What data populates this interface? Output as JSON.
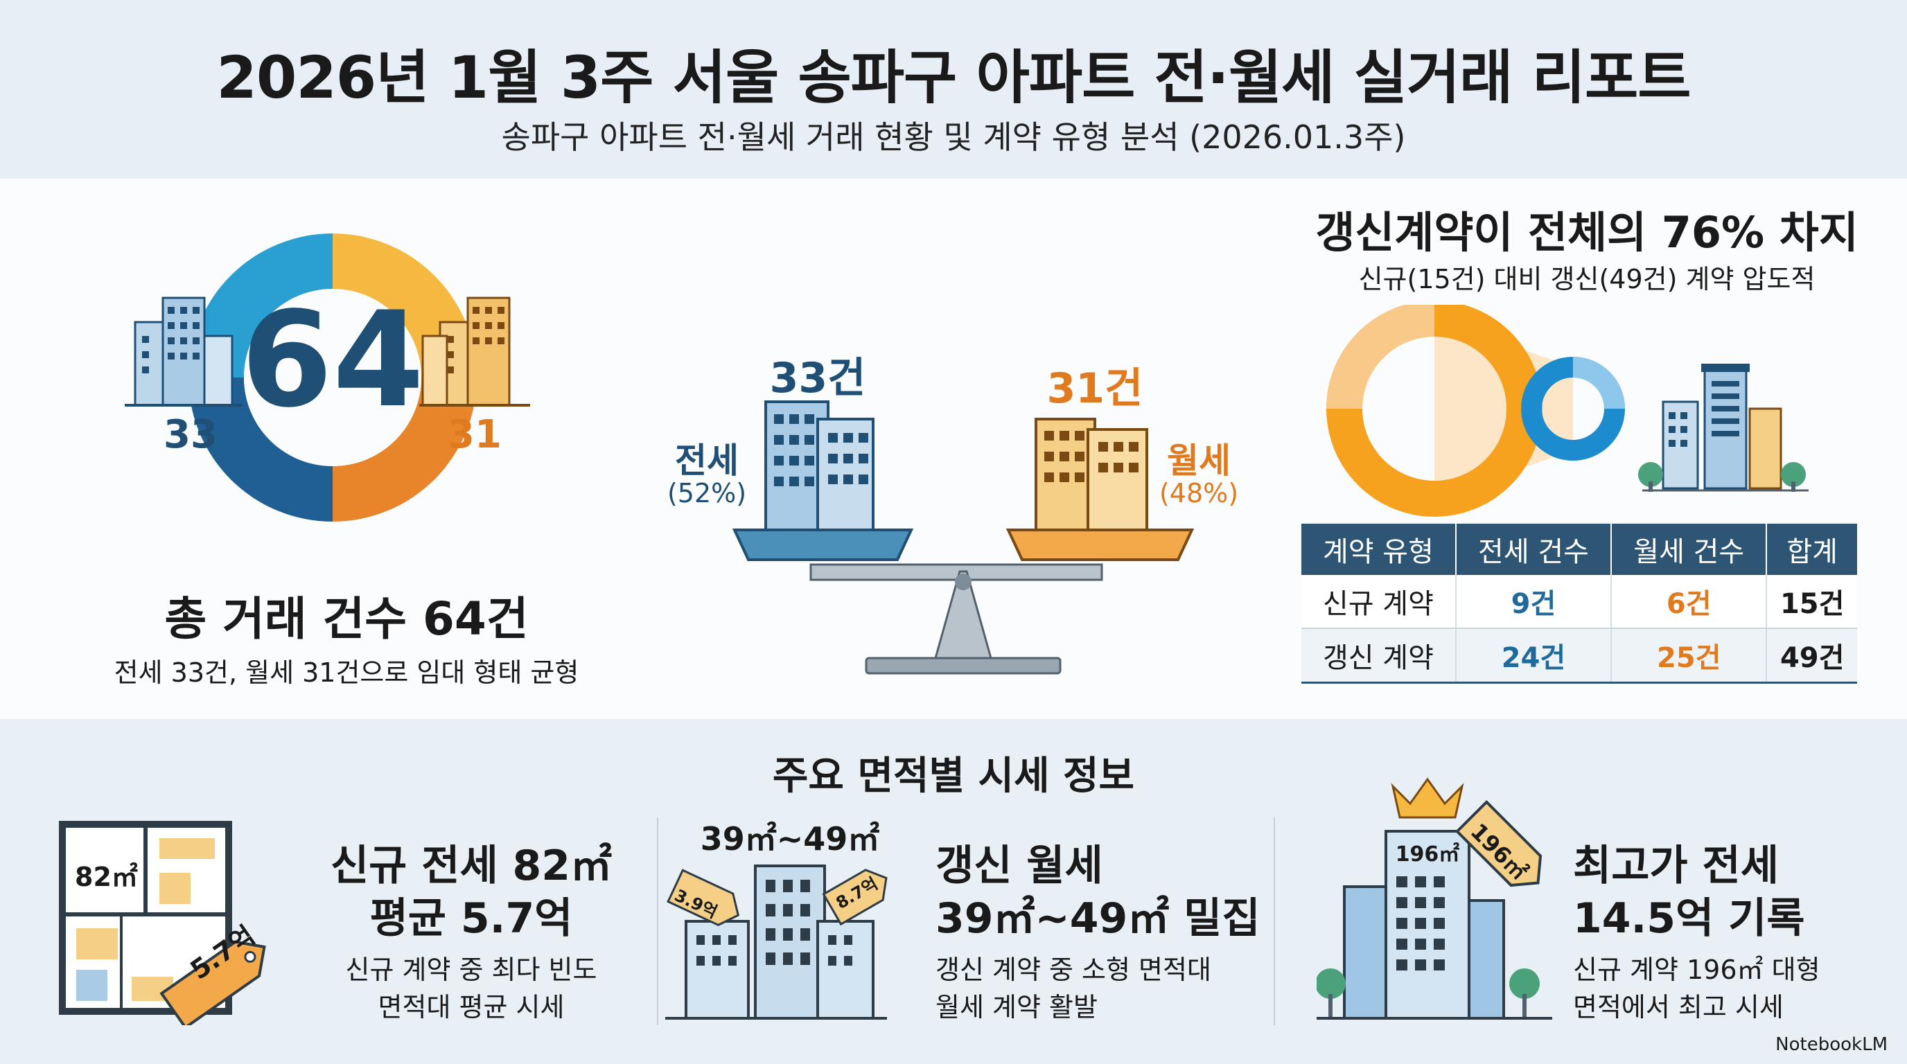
{
  "header": {
    "title": "2026년 1월 3주 서울 송파구 아파트 전·월세 실거래 리포트",
    "subtitle": "송파구 아파트 전·월세 거래 현황 및 계약 유형 분석 (2026.01.3주)"
  },
  "total": {
    "count": "64",
    "jeonse_count": "33",
    "wolse_count": "31",
    "label": "총 거래 건수 64건",
    "description": "전세 33건, 월세 31건으로 임대 형태 균형"
  },
  "scale": {
    "jeonse_count": "33건",
    "jeonse_label": "전세",
    "jeonse_pct": "(52%)",
    "wolse_count": "31건",
    "wolse_label": "월세",
    "wolse_pct": "(48%)"
  },
  "renewal": {
    "title": "갱신계약이 전체의 76% 차지",
    "subtitle": "신규(15건) 대비 갱신(49건) 계약 압도적",
    "table": {
      "headers": [
        "계약 유형",
        "전세 건수",
        "월세 건수",
        "합계"
      ],
      "rows": [
        [
          "신규 계약",
          "9건",
          "6건",
          "15건"
        ],
        [
          "갱신 계약",
          "24건",
          "25건",
          "49건"
        ]
      ]
    }
  },
  "area_section": {
    "title": "주요 면적별 시세 정보",
    "cards": [
      {
        "icon_label": "82㎡",
        "tag": "5.7억",
        "title_line1": "신규 전세 82㎡",
        "title_line2": "평균 5.7억",
        "desc_line1": "신규 계약 중 최다 빈도",
        "desc_line2": "면적대 평균 시세"
      },
      {
        "icon_label": "39㎡~49㎡",
        "tag_left": "3.9억",
        "tag_right": "8.7억",
        "title_line1": "갱신 월세",
        "title_line2": "39㎡~49㎡ 밀집",
        "desc_line1": "갱신 계약 중 소형 면적대",
        "desc_line2": "월세 계약 활발"
      },
      {
        "icon_label": "196㎡",
        "tag": "196㎡",
        "title_line1": "최고가 전세",
        "title_line2": "14.5억 기록",
        "desc_line1": "신규 계약 196㎡ 대형",
        "desc_line2": "면적에서 최고 시세"
      }
    ]
  },
  "brand": "NotebookLM",
  "colors": {
    "jeonse_blue": "#1f6a9a",
    "wolse_orange": "#e8922a",
    "header_bg": "#e7eef5",
    "table_header": "#2e5674"
  }
}
